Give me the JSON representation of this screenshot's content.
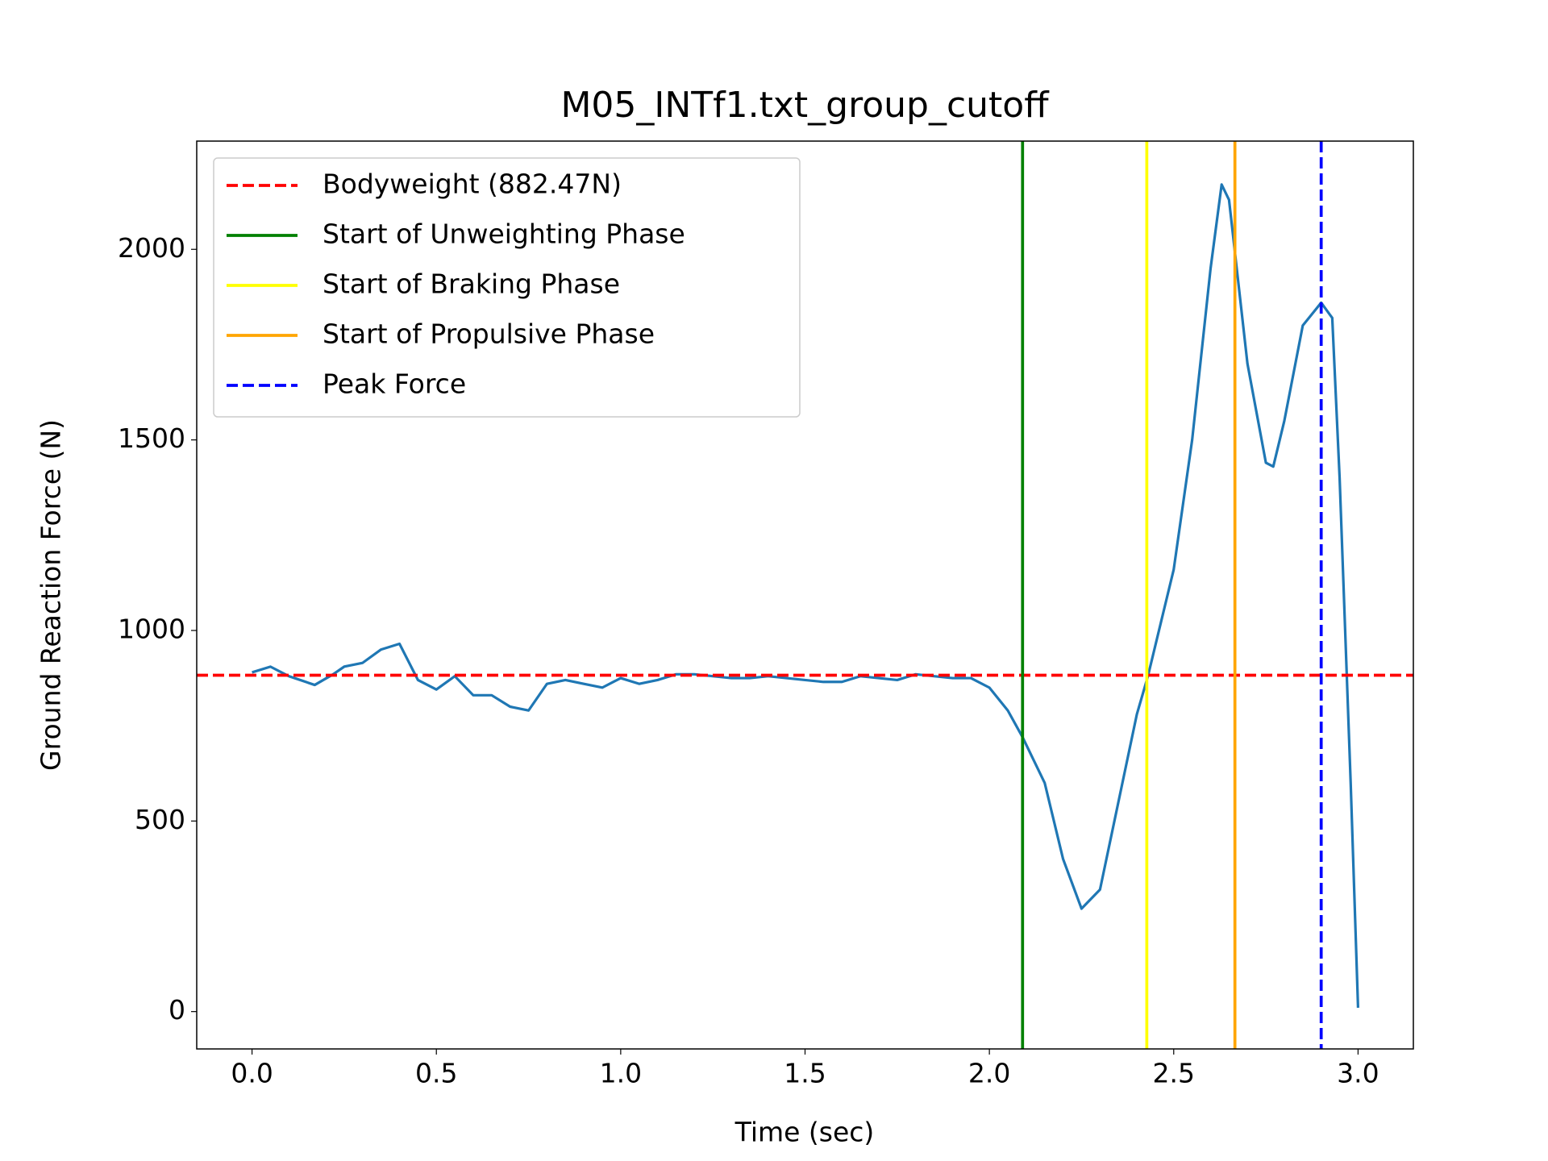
{
  "chart_data": {
    "type": "line",
    "title": "M05_INTf1.txt_group_cutoff",
    "xlabel": "Time (sec)",
    "ylabel": "Ground Reaction Force (N)",
    "x": [
      0,
      0.05,
      0.1,
      0.17,
      0.22,
      0.25,
      0.3,
      0.35,
      0.4,
      0.45,
      0.5,
      0.55,
      0.6,
      0.65,
      0.7,
      0.75,
      0.8,
      0.85,
      0.9,
      0.95,
      1.0,
      1.05,
      1.1,
      1.15,
      1.2,
      1.25,
      1.3,
      1.35,
      1.4,
      1.45,
      1.5,
      1.55,
      1.6,
      1.65,
      1.7,
      1.75,
      1.8,
      1.85,
      1.9,
      1.95,
      2.0,
      2.05,
      2.09,
      2.12,
      2.15,
      2.2,
      2.25,
      2.3,
      2.35,
      2.4,
      2.43,
      2.45,
      2.5,
      2.55,
      2.6,
      2.63,
      2.65,
      2.7,
      2.75,
      2.77,
      2.8,
      2.85,
      2.9,
      2.93,
      2.95,
      2.98,
      3.0
    ],
    "series": [
      {
        "color": "#1f77b4",
        "values": [
          890,
          905,
          880,
          857,
          885,
          905,
          915,
          950,
          965,
          870,
          845,
          880,
          830,
          830,
          800,
          790,
          860,
          870,
          860,
          850,
          875,
          860,
          870,
          885,
          885,
          880,
          875,
          875,
          880,
          875,
          870,
          865,
          865,
          880,
          875,
          870,
          885,
          880,
          875,
          875,
          850,
          790,
          720,
          660,
          600,
          400,
          270,
          320,
          550,
          780,
          880,
          960,
          1160,
          1500,
          1950,
          2170,
          2130,
          1700,
          1440,
          1430,
          1550,
          1800,
          1860,
          1820,
          1400,
          600,
          10
        ]
      }
    ],
    "hlines": [
      {
        "name": "Bodyweight (882.47N)",
        "value": 882.47,
        "color": "#ff0000",
        "style": "dashed"
      }
    ],
    "vlines": [
      {
        "name": "Start of Unweighting Phase",
        "value": 2.09,
        "color": "#008000",
        "style": "solid"
      },
      {
        "name": "Start of Braking Phase",
        "value": 2.427,
        "color": "#ffff00",
        "style": "solid"
      },
      {
        "name": "Start of Propulsive Phase",
        "value": 2.666,
        "color": "#ffa500",
        "style": "solid"
      },
      {
        "name": "Peak Force",
        "value": 2.9,
        "color": "#0000ff",
        "style": "dashed"
      }
    ],
    "xlim": [
      -0.15,
      3.15
    ],
    "ylim": [
      -98,
      2284
    ],
    "xticks": [
      {
        "value": 0,
        "label": "0.0"
      },
      0.5,
      {
        "value": 1,
        "label": "1.0"
      },
      1.5,
      {
        "value": 2,
        "label": "2.0"
      },
      2.5,
      {
        "value": 3,
        "label": "3.0"
      }
    ],
    "yticks": [
      0,
      500,
      1000,
      1500,
      2000
    ],
    "legend": "upper left"
  }
}
